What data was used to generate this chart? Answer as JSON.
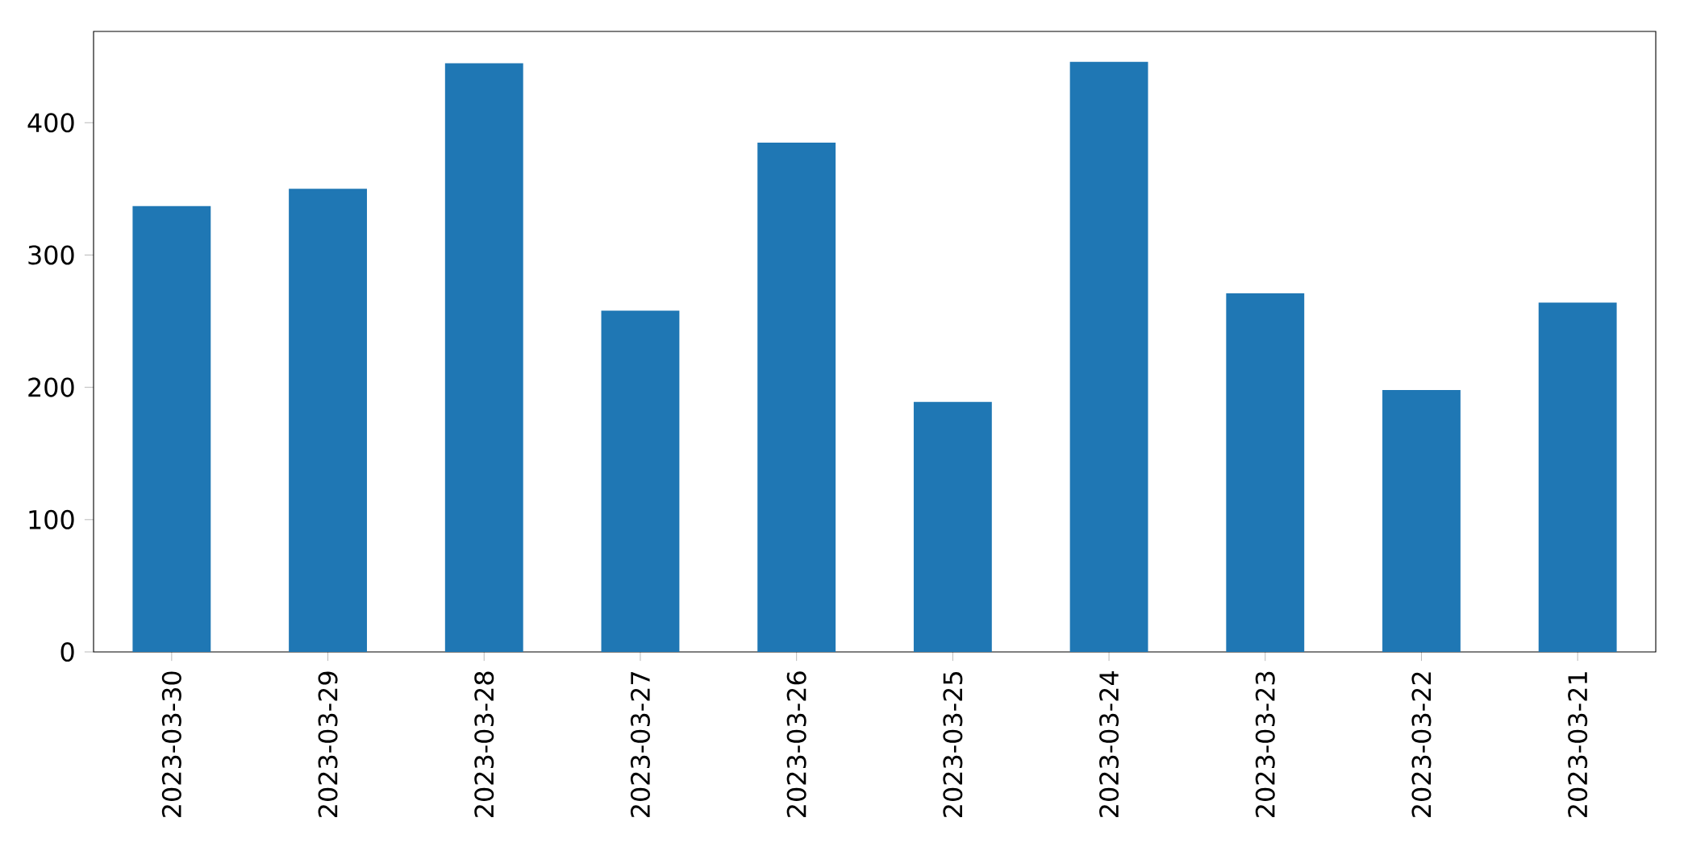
{
  "chart_data": {
    "type": "bar",
    "categories": [
      "2023-03-30",
      "2023-03-29",
      "2023-03-28",
      "2023-03-27",
      "2023-03-26",
      "2023-03-25",
      "2023-03-24",
      "2023-03-23",
      "2023-03-22",
      "2023-03-21"
    ],
    "values": [
      337,
      350,
      445,
      258,
      385,
      189,
      446,
      271,
      198,
      264
    ],
    "color": "#1f77b4",
    "ylim": [
      0,
      469
    ],
    "yticks": [
      0,
      100,
      200,
      300,
      400
    ]
  }
}
